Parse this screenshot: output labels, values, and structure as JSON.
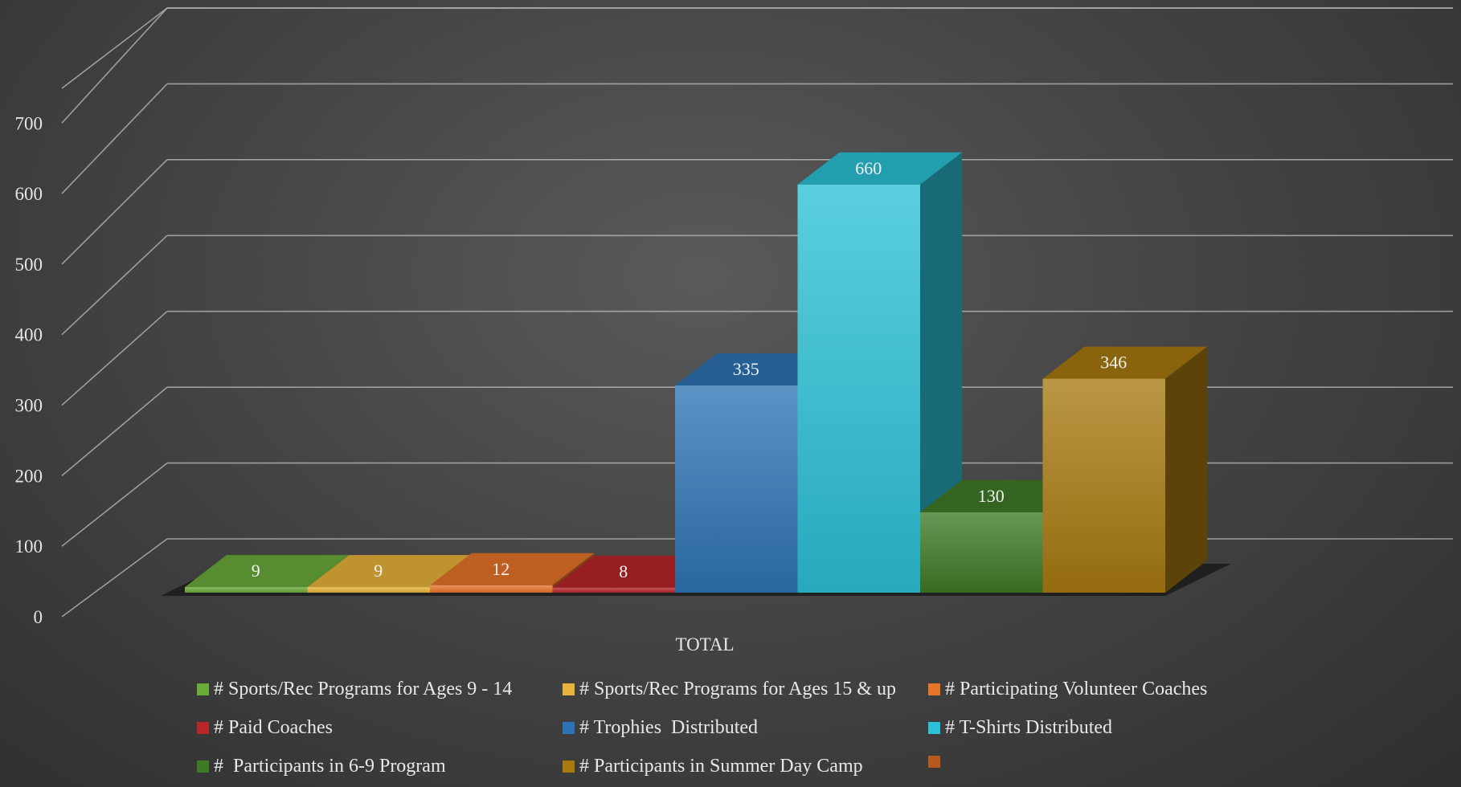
{
  "chart_data": {
    "type": "bar",
    "style": "3d-clustered-column",
    "categories": [
      "TOTAL"
    ],
    "ylim": [
      0,
      700
    ],
    "yticks": [
      0,
      100,
      200,
      300,
      400,
      500,
      600,
      700
    ],
    "grid": true,
    "legend_position": "bottom",
    "series": [
      {
        "name": "# Sports/Rec Programs for Ages 9 - 14",
        "values": [
          9
        ],
        "color": "#6aab3a"
      },
      {
        "name": "# Sports/Rec Programs for Ages 15 & up",
        "values": [
          9
        ],
        "color": "#e8b33a"
      },
      {
        "name": "# Participating Volunteer Coaches",
        "values": [
          12
        ],
        "color": "#e8742a"
      },
      {
        "name": "# Paid Coaches",
        "values": [
          8
        ],
        "color": "#b8262a"
      },
      {
        "name": "# Trophies  Distributed",
        "values": [
          335
        ],
        "color": "#2e74b5"
      },
      {
        "name": "# T-Shirts Distributed",
        "values": [
          660
        ],
        "color": "#2bc1d6"
      },
      {
        "name": "#  Participants in 6-9 Program",
        "values": [
          130
        ],
        "color": "#3f7a26"
      },
      {
        "name": "# Participants in Summer Day Camp",
        "values": [
          346
        ],
        "color": "#a87a10"
      },
      {
        "name": "",
        "values": [
          null
        ],
        "color": "#b65a20"
      }
    ]
  }
}
